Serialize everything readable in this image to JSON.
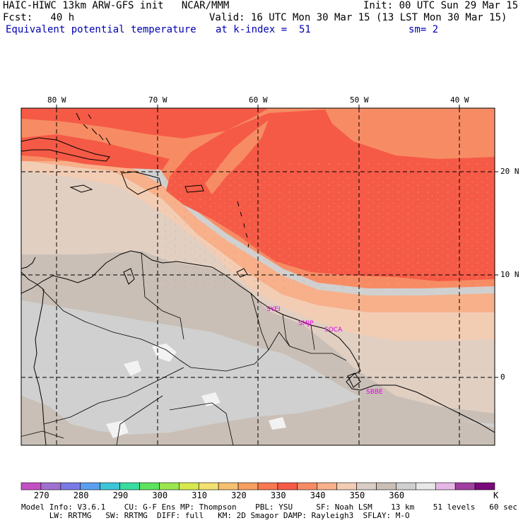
{
  "header": {
    "model_title": "HAIC-HIWC 13km ARW-GFS init   NCAR/MMM",
    "forecast": "Fcst:   40 h",
    "init": "Init: 00 UTC Sun 29 Mar 15",
    "valid": "Valid: 16 UTC Mon 30 Mar 15 (13 LST Mon 30 Mar 15)",
    "field_name": "Equivalent potential temperature",
    "level": "at k-index =  51",
    "smoothing": "sm= 2"
  },
  "map": {
    "lon_labels": [
      "80 W",
      "70 W",
      "60 W",
      "50 W",
      "40 W"
    ],
    "lat_labels": [
      "20 N",
      "10 N",
      "0"
    ],
    "stations": [
      "SYEI",
      "SMJP",
      "SOCA",
      "SBBE"
    ],
    "colors": {
      "ocean_warm": "#f55a46",
      "ocean_orange": "#f78c64",
      "ocean_peach": "#f7b08a",
      "ocean_tan": "#f2cdb4",
      "land_light_tan": "#e1cfc2",
      "land_taupe": "#c9bfb6",
      "land_grey": "#d0d0d0",
      "land_white": "#f2f2f2",
      "coast": "#000000"
    }
  },
  "colorbar": {
    "labels": [
      "270",
      "280",
      "290",
      "300",
      "310",
      "320",
      "330",
      "340",
      "350",
      "360"
    ],
    "unit": "K",
    "colors": [
      "#c451c4",
      "#a070d0",
      "#7a7ae6",
      "#5a9ff0",
      "#3cc6d8",
      "#36dca0",
      "#5fe35f",
      "#9be650",
      "#d6ea50",
      "#f2e070",
      "#f7c070",
      "#f7a060",
      "#f87850",
      "#f55a46",
      "#f78c64",
      "#f7b08a",
      "#f2cdb4",
      "#d9cdc6",
      "#c9bfb6",
      "#d0d0d0",
      "#e8e8e8",
      "#e6b8e6",
      "#a040a0",
      "#7a0a7a"
    ]
  },
  "footer": {
    "line1": "Model Info: V3.6.1    CU: G-F Ens MP: Thompson    PBL: YSU     SF: Noah LSM    13 km    51 levels   60 sec",
    "line2": "      LW: RRTMG   SW: RRTMG  DIFF: full   KM: 2D Smagor DAMP: Rayleigh3  SFLAY: M-O"
  }
}
